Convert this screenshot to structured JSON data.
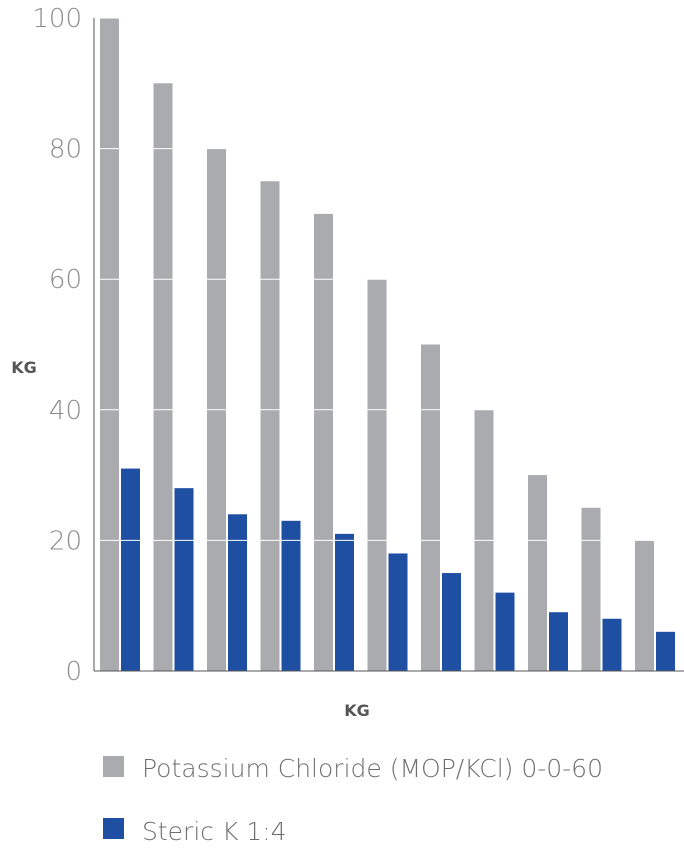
{
  "chart_data": {
    "type": "bar",
    "title": "",
    "xlabel": "KG",
    "ylabel": "KG",
    "ylim": [
      0,
      100
    ],
    "y_ticks": [
      0,
      20,
      40,
      60,
      80,
      100
    ],
    "y_tick_labels": [
      "0",
      "20",
      "40",
      "60",
      "80",
      "100"
    ],
    "grid": true,
    "categories": [
      "",
      "",
      "",
      "",
      "",
      "",
      "",
      "",
      "",
      "",
      ""
    ],
    "series": [
      {
        "name": "Potassium Chloride (MOP/KCl) 0-0-60",
        "color": "#a9abae",
        "values": [
          100,
          90,
          80,
          75,
          70,
          60,
          50,
          40,
          30,
          25,
          20
        ]
      },
      {
        "name": "Steric K 1:4",
        "color": "#1e4fa3",
        "values": [
          31,
          28,
          24,
          23,
          21,
          18,
          15,
          12,
          9,
          8,
          6
        ]
      }
    ],
    "legend_position": "bottom"
  }
}
